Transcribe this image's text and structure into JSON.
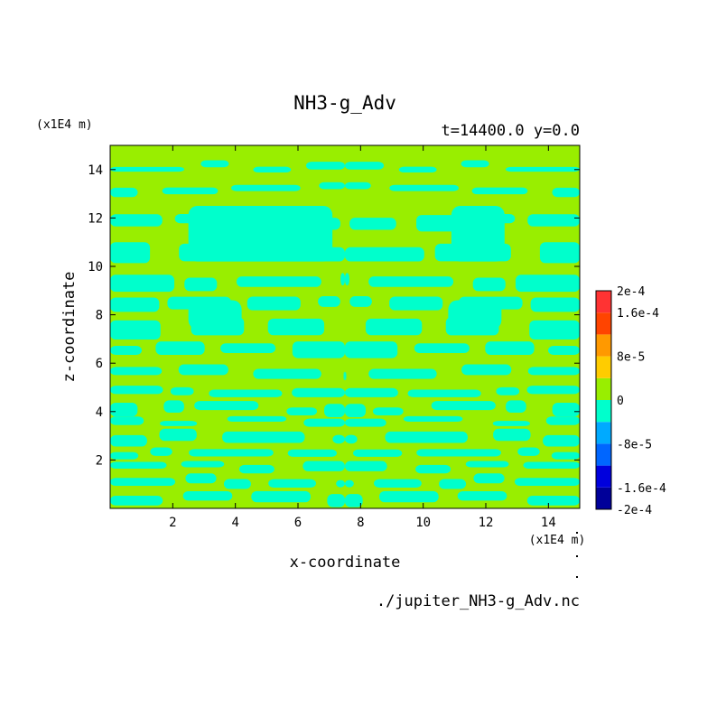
{
  "chart_data": {
    "type": "heatmap",
    "title": "NH3-g_Adv",
    "subtitle": "t=14400.0 y=0.0",
    "xlabel": "x-coordinate",
    "ylabel": "z-coordinate",
    "x_unit": "(x1E4 m)",
    "y_unit": "(x1E4 m)",
    "xlim": [
      0,
      15
    ],
    "ylim": [
      0,
      15
    ],
    "x_ticks": [
      2,
      4,
      6,
      8,
      10,
      12,
      14
    ],
    "y_ticks": [
      2,
      4,
      6,
      8,
      10,
      12,
      14
    ],
    "source_file": "./jupiter_NH3-g_Adv.nc",
    "colors": {
      "positive_small": "#99ee00",
      "negative_small": "#00ffcc",
      "neg_level_2": "#00ccff",
      "pos_level_2": "#ffcc00"
    },
    "colorbar": {
      "levels": [
        {
          "color": "#000099"
        },
        {
          "color": "#0000dd"
        },
        {
          "color": "#0066ff"
        },
        {
          "color": "#00aaff"
        },
        {
          "color": "#00ffcc"
        },
        {
          "color": "#99ee00"
        },
        {
          "color": "#ffcc00"
        },
        {
          "color": "#ff9900"
        },
        {
          "color": "#ff4400"
        },
        {
          "color": "#ff3333"
        }
      ],
      "labels": [
        {
          "text": "2e-4",
          "value": 0.0002
        },
        {
          "text": "1.6e-4",
          "value": 0.00016
        },
        {
          "text": "8e-5",
          "value": 8e-05
        },
        {
          "text": "0",
          "value": 0
        },
        {
          "text": "-8e-5",
          "value": -8e-05
        },
        {
          "text": "-1.6e-4",
          "value": -0.00016
        },
        {
          "text": "-2e-4",
          "value": -0.0002
        }
      ],
      "vmin": -0.0002,
      "vmax": 0.0002
    }
  }
}
